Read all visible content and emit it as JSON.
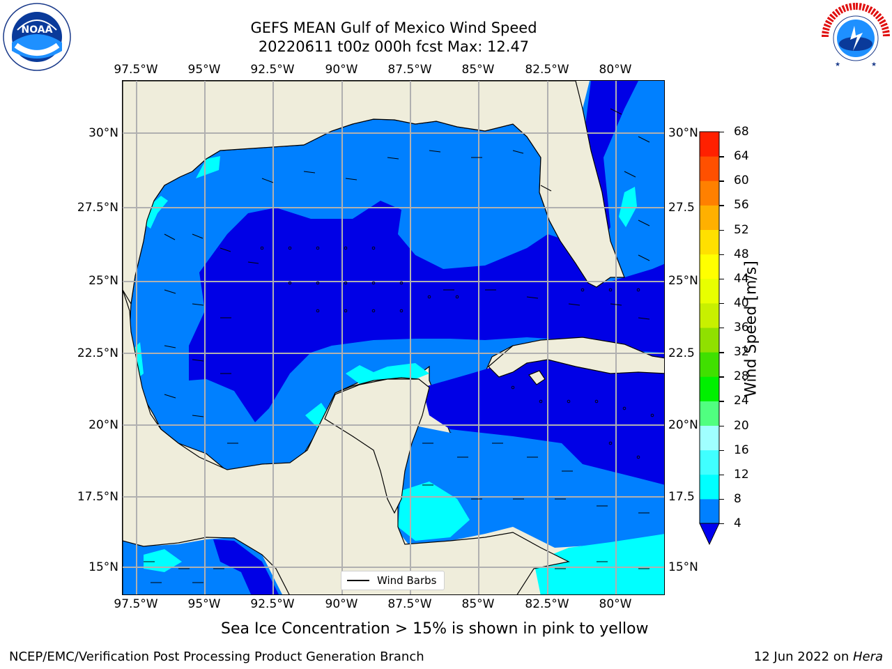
{
  "title": {
    "line1": "GEFS MEAN Gulf of Mexico Wind Speed",
    "line2": "20220611 t00z 000h fcst   Max: 12.47"
  },
  "logos": {
    "noaa": {
      "icon": "noaa-logo-icon",
      "text": "NOAA",
      "ring_text": "NATIONAL OCEANIC AND ATMOSPHERIC ADMINISTRATION · U.S. DEPARTMENT OF COMMERCE"
    },
    "nws": {
      "icon": "nws-logo-icon",
      "ring_text": "NATIONAL WEATHER SERVICE"
    }
  },
  "axes": {
    "lon_top": [
      "97.5°W",
      "95°W",
      "92.5°W",
      "90°W",
      "87.5°W",
      "85°W",
      "82.5°W",
      "80°W"
    ],
    "lon_bottom": [
      "97.5°W",
      "95°W",
      "92.5°W",
      "90°W",
      "87.5°W",
      "85°W",
      "82.5°W",
      "80°W"
    ],
    "lat_left": [
      "30°N",
      "27.5°N",
      "25°N",
      "22.5°N",
      "20°N",
      "17.5°N",
      "15°N"
    ],
    "lat_right": [
      "30°N",
      "27.5",
      "25°N",
      "22.5",
      "20°N",
      "17.5",
      "15°N"
    ]
  },
  "legend": {
    "label": "Wind Barbs"
  },
  "colorbar": {
    "label": "Wind Speed [m/s]",
    "ticks": [
      "68",
      "64",
      "60",
      "56",
      "52",
      "48",
      "44",
      "40",
      "36",
      "32",
      "28",
      "24",
      "20",
      "16",
      "12",
      "8",
      "4"
    ],
    "colors": [
      "#0000f0",
      "#0080ff",
      "#00ffff",
      "#40ffff",
      "#a0ffff",
      "#50ff80",
      "#00f000",
      "#40e000",
      "#90e000",
      "#c8f000",
      "#e8ff00",
      "#ffff00",
      "#ffe000",
      "#ffb000",
      "#ff8000",
      "#ff5000",
      "#ff2000",
      "#ff0000"
    ]
  },
  "caption": "Sea Ice Concentration > 15% is shown in pink to yellow",
  "footer": {
    "left": "NCEP/EMC/Verification Post Processing Product Generation Branch",
    "right_date": "12 Jun 2022 on ",
    "right_machine": "Hera"
  }
}
